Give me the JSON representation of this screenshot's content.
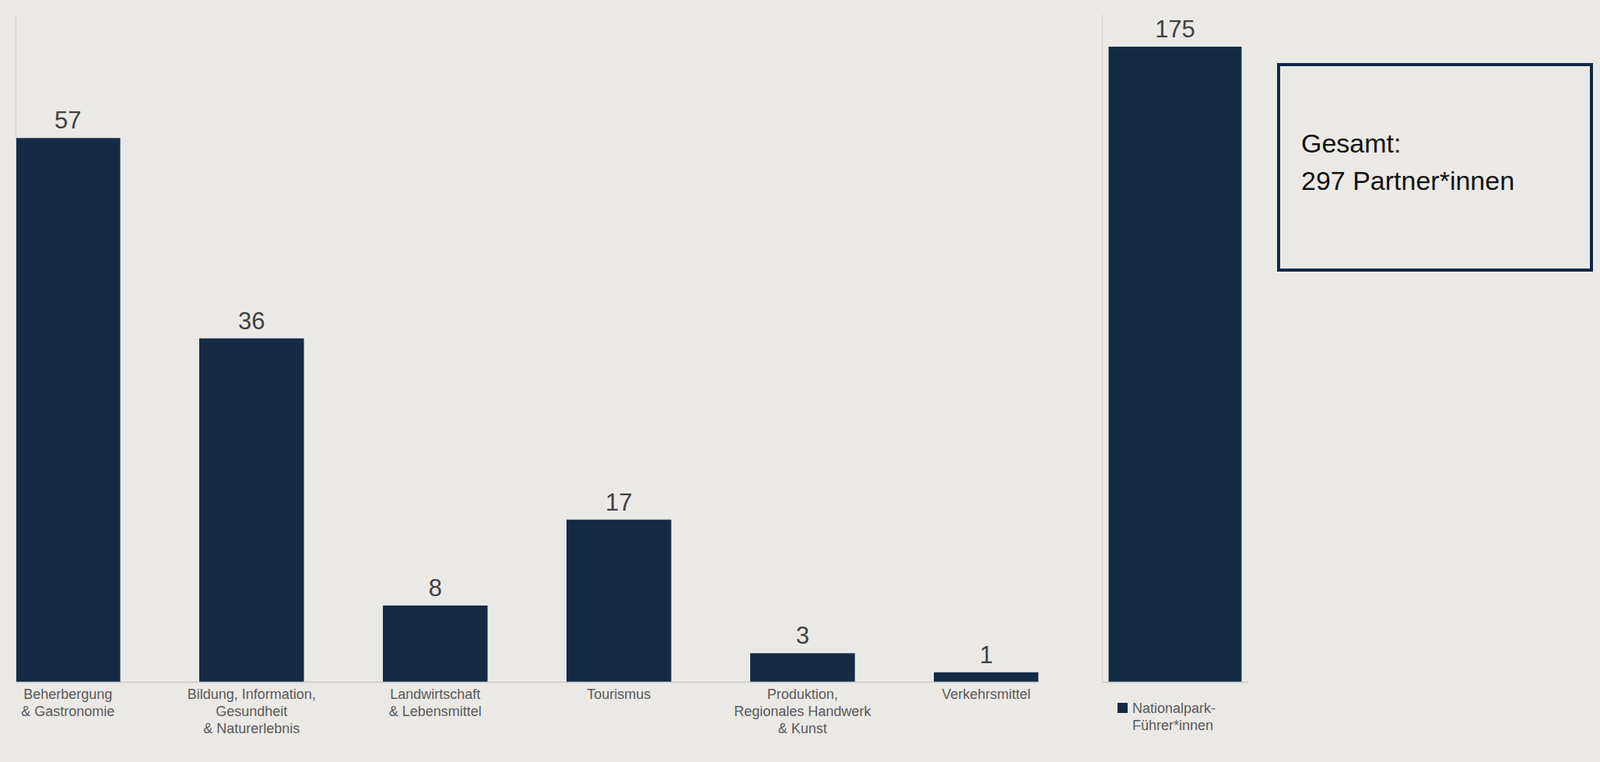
{
  "chart_data": [
    {
      "type": "bar",
      "categories": [
        "Beherbergung & Gastronomie",
        "Bildung, Information, Gesundheit & Naturerlebnis",
        "Landwirtschaft & Lebensmittel",
        "Tourismus",
        "Produktion, Regionales Handwerk & Kunst",
        "Verkehrsmittel"
      ],
      "values": [
        57,
        36,
        8,
        17,
        3,
        1
      ],
      "color": "#132b45",
      "ylim": [
        0,
        70
      ],
      "data_labels": true,
      "tick_labels": "x"
    },
    {
      "type": "bar",
      "categories": [
        null
      ],
      "series": [
        {
          "name": "Nationalpark-Führer*innen",
          "color": "#132b45",
          "values": [
            175
          ]
        }
      ],
      "ylim": [
        0,
        184
      ],
      "data_labels": true,
      "tick_labels": false,
      "legend": "bottom",
      "annotations": [
        "Gesamt:",
        "297 Partner*innen"
      ]
    }
  ]
}
